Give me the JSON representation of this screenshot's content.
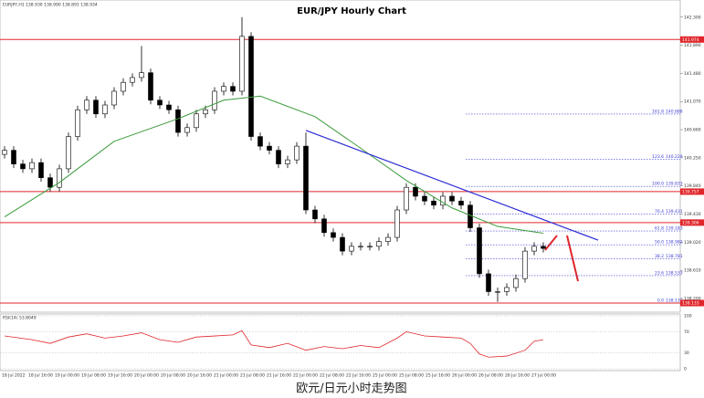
{
  "chart_data": {
    "type": "candlestick",
    "title": "EUR/JPY Hourly Chart",
    "info": "EURJPY,H1  138.930 138.990 138.891 138.934",
    "candles": {
      "open": [
        140.3,
        140.36,
        140.16,
        140.09,
        140.18,
        139.96,
        139.82,
        140.09,
        140.56,
        140.95,
        141.09,
        140.89,
        141.02,
        141.22,
        141.35,
        141.42,
        141.49,
        141.09,
        141.02,
        140.95,
        140.62,
        140.69,
        140.89,
        140.95,
        141.22,
        141.29,
        141.22,
        142.02,
        140.56,
        140.42,
        140.36,
        140.16,
        140.22,
        140.42,
        139.49,
        139.36,
        139.16,
        139.09,
        138.89,
        138.96,
        138.96,
        138.96,
        139.03,
        139.09,
        139.49,
        139.82,
        139.69,
        139.62,
        139.56,
        139.69,
        139.62,
        139.56,
        139.23,
        138.56,
        138.3,
        138.3,
        138.36,
        138.49,
        138.89,
        138.96
      ],
      "high": [
        140.42,
        140.42,
        140.22,
        140.24,
        140.24,
        140.02,
        140.15,
        140.62,
        141.01,
        141.15,
        141.15,
        141.08,
        141.28,
        141.41,
        141.48,
        141.88,
        141.55,
        141.15,
        141.08,
        141.01,
        140.75,
        140.95,
        141.01,
        141.28,
        141.35,
        141.35,
        142.3,
        142.08,
        140.62,
        140.48,
        140.42,
        140.28,
        140.48,
        140.62,
        139.55,
        139.42,
        139.22,
        139.15,
        139.02,
        139.02,
        139.02,
        139.09,
        139.15,
        139.55,
        139.88,
        139.88,
        139.75,
        139.68,
        139.75,
        139.75,
        139.68,
        139.62,
        139.29,
        138.62,
        138.36,
        138.42,
        138.55,
        138.95,
        139.02,
        139.02
      ],
      "low": [
        140.24,
        140.1,
        140.03,
        140.03,
        139.9,
        139.76,
        139.76,
        140.03,
        140.5,
        140.89,
        140.83,
        140.83,
        140.96,
        141.16,
        141.29,
        141.36,
        141.03,
        140.96,
        140.89,
        140.56,
        140.56,
        140.63,
        140.83,
        140.89,
        141.16,
        141.16,
        141.16,
        140.5,
        140.36,
        140.3,
        140.1,
        140.1,
        140.16,
        139.43,
        139.3,
        139.1,
        139.03,
        138.83,
        138.83,
        138.9,
        138.9,
        138.9,
        138.97,
        139.03,
        139.43,
        139.63,
        139.56,
        139.5,
        139.5,
        139.56,
        139.5,
        139.17,
        138.5,
        138.24,
        138.15,
        138.24,
        138.3,
        138.43,
        138.83,
        138.87
      ],
      "close": [
        140.36,
        140.16,
        140.09,
        140.18,
        139.96,
        139.82,
        140.09,
        140.56,
        140.95,
        141.09,
        140.89,
        141.02,
        141.22,
        141.35,
        141.42,
        141.49,
        141.09,
        141.02,
        140.95,
        140.62,
        140.69,
        140.89,
        140.95,
        141.22,
        141.29,
        141.22,
        142.02,
        140.56,
        140.42,
        140.36,
        140.16,
        140.22,
        140.42,
        139.49,
        139.36,
        139.16,
        139.09,
        138.89,
        138.96,
        138.96,
        138.96,
        139.03,
        139.09,
        139.49,
        139.82,
        139.69,
        139.62,
        139.56,
        139.69,
        139.62,
        139.56,
        139.23,
        138.56,
        138.3,
        138.3,
        138.36,
        138.49,
        138.89,
        138.96,
        138.93
      ]
    },
    "xlim": [
      -0.5,
      74
    ],
    "ylim": [
      138.0,
      142.55
    ],
    "yticks": [
      {
        "value": 142.3,
        "label": "142.300"
      },
      {
        "value": 141.89,
        "label": "141.890"
      },
      {
        "value": 141.48,
        "label": "141.480"
      },
      {
        "value": 141.07,
        "label": "141.070"
      },
      {
        "value": 140.66,
        "label": "140.660"
      },
      {
        "value": 140.25,
        "label": "140.250"
      },
      {
        "value": 139.84,
        "label": "139.840"
      },
      {
        "value": 139.43,
        "label": "139.430"
      },
      {
        "value": 139.02,
        "label": "139.020"
      },
      {
        "value": 138.61,
        "label": "138.610"
      },
      {
        "value": 138.2,
        "label": "138.200"
      }
    ],
    "x_labels": [
      "18 Jul 2022",
      "18 Jul 16:00",
      "19 Jul 00:00",
      "19 Jul 08:00",
      "19 Jul 16:00",
      "20 Jul 00:00",
      "20 Jul 08:00",
      "20 Jul 16:00",
      "21 Jul 00:00",
      "21 Jul 08:00",
      "21 Jul 16:00",
      "22 Jul 00:00",
      "22 Jul 08:00",
      "22 Jul 16:00",
      "25 Jul 00:00",
      "25 Jul 08:00",
      "25 Jul 16:00",
      "26 Jul 00:00",
      "26 Jul 08:00",
      "26 Jul 16:00",
      "27 Jul 00:00"
    ],
    "ma": {
      "color": "#3a9a3a",
      "x": [
        0,
        6,
        12,
        19,
        24,
        28,
        34,
        39,
        44,
        49,
        54,
        59
      ],
      "values": [
        139.39,
        139.89,
        140.49,
        140.82,
        141.09,
        141.15,
        140.85,
        140.39,
        139.92,
        139.52,
        139.25,
        139.15
      ]
    },
    "trendline": {
      "color": "#2b2bd6",
      "x": [
        33,
        65
      ],
      "values": [
        140.65,
        139.05
      ]
    },
    "resistance_lines": {
      "color": "#e0262b",
      "values": [
        141.974,
        139.757,
        139.306,
        138.133
      ]
    },
    "fib": {
      "color": "#3b3bd6",
      "levels": [
        {
          "ratio": "161.8",
          "price": 140.888
        },
        {
          "ratio": "123.6",
          "price": 140.229
        },
        {
          "ratio": "100.0",
          "price": 139.833
        },
        {
          "ratio": "76.4",
          "price": 139.431
        },
        {
          "ratio": "61.8",
          "price": 139.183
        },
        {
          "ratio": "50.0",
          "price": 138.982
        },
        {
          "ratio": "38.2",
          "price": 138.781
        },
        {
          "ratio": "23.6",
          "price": 138.533
        },
        {
          "ratio": "0.0",
          "price": 138.133
        }
      ]
    },
    "rsi": {
      "label": "RSI(14) 53.8049",
      "color": "#e0262b",
      "ylim": [
        0,
        100
      ],
      "yticks": [
        0,
        30,
        70,
        100
      ],
      "x": [
        0,
        3,
        5,
        7,
        9,
        11,
        13,
        15,
        17,
        19,
        21,
        23,
        25,
        26,
        27,
        29,
        31,
        33,
        35,
        37,
        39,
        41,
        43,
        44,
        46,
        48,
        50,
        51,
        52,
        53,
        55,
        57,
        58,
        59
      ],
      "values": [
        62,
        55,
        48,
        60,
        66,
        58,
        62,
        68,
        55,
        50,
        60,
        62,
        64,
        72,
        45,
        40,
        48,
        35,
        42,
        38,
        44,
        40,
        58,
        70,
        62,
        60,
        58,
        48,
        28,
        22,
        24,
        35,
        52,
        55
      ]
    }
  },
  "caption": "欧元/日元小时走势图"
}
